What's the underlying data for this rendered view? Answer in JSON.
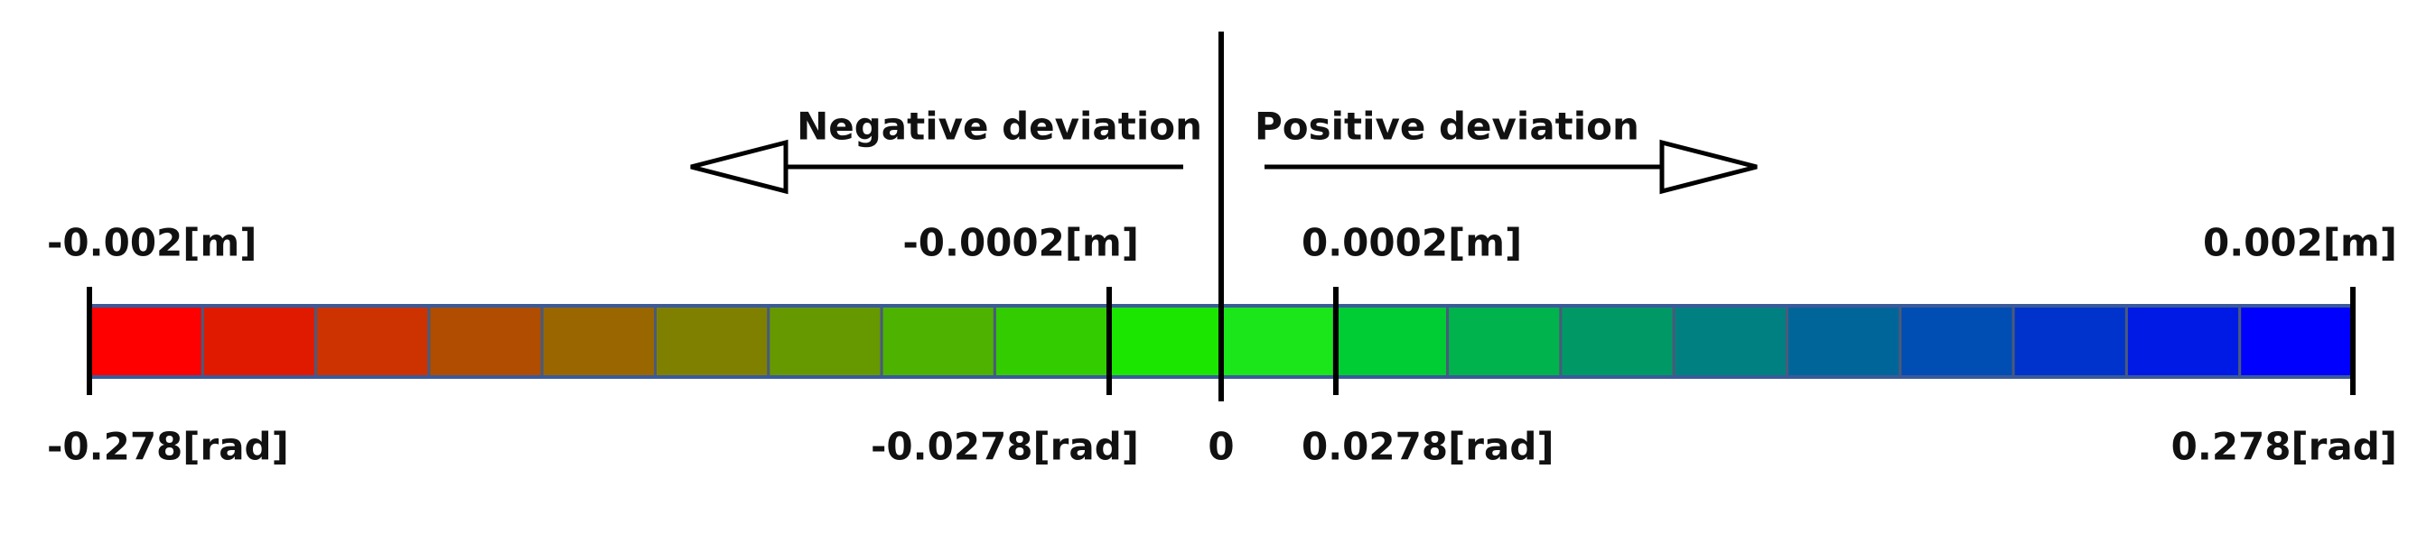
{
  "arrows": {
    "negative": "Negative deviation",
    "positive": "Positive deviation"
  },
  "top_labels": [
    "-0.002[m]",
    "-0.0002[m]",
    "0.0002[m]",
    "0.002[m]"
  ],
  "bottom_labels": [
    "-0.278[rad]",
    "-0.0278[rad]",
    "0",
    "0.0278[rad]",
    "0.278[rad]"
  ],
  "scale": {
    "colors": [
      "#ff0000",
      "#e01a00",
      "#cc3300",
      "#b04d00",
      "#996600",
      "#808000",
      "#669900",
      "#4db300",
      "#33cc00",
      "#1ae600",
      "#1ae61a",
      "#00cc33",
      "#00b34d",
      "#009966",
      "#008080",
      "#006699",
      "#004db3",
      "#0033cc",
      "#001ae6",
      "#0000ff"
    ]
  }
}
